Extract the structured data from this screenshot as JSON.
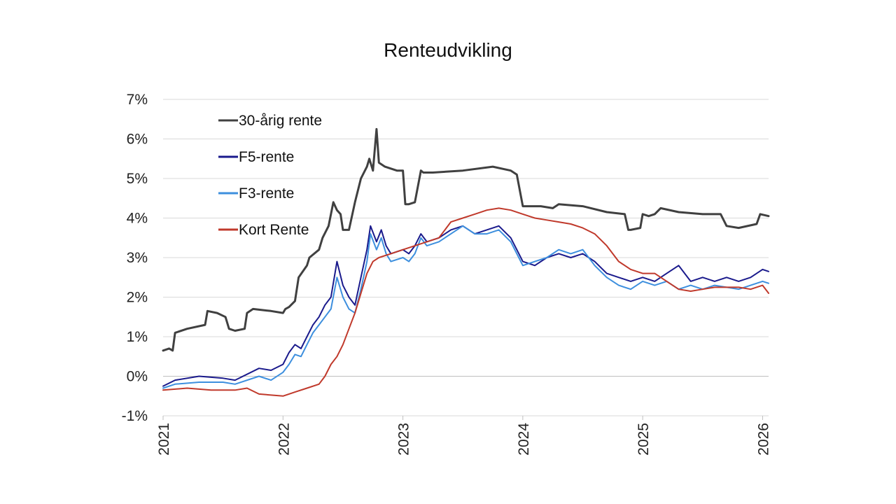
{
  "chart_data": {
    "type": "line",
    "title": "Renteudvikling",
    "xlabel": "",
    "ylabel": "",
    "x_ticks": [
      "2021",
      "2022",
      "2023",
      "2024",
      "2025",
      "2026"
    ],
    "y_ticks": [
      "7%",
      "6%",
      "5%",
      "4%",
      "3%",
      "2%",
      "1%",
      "0%",
      "-1%"
    ],
    "xlim": [
      2021.0,
      2026.05
    ],
    "ylim": [
      -1,
      7
    ],
    "grid": "horizontal",
    "legend_position": "top-left",
    "series": [
      {
        "name": "30-årig rente",
        "color": "#404040",
        "x": [
          2021.0,
          2021.05,
          2021.08,
          2021.1,
          2021.2,
          2021.35,
          2021.37,
          2021.45,
          2021.52,
          2021.55,
          2021.6,
          2021.68,
          2021.7,
          2021.75,
          2021.9,
          2022.0,
          2022.02,
          2022.05,
          2022.1,
          2022.13,
          2022.2,
          2022.22,
          2022.3,
          2022.33,
          2022.38,
          2022.42,
          2022.45,
          2022.48,
          2022.5,
          2022.55,
          2022.6,
          2022.65,
          2022.7,
          2022.72,
          2022.75,
          2022.78,
          2022.8,
          2022.85,
          2022.95,
          2023.0,
          2023.02,
          2023.05,
          2023.1,
          2023.15,
          2023.17,
          2023.25,
          2023.5,
          2023.75,
          2023.9,
          2023.95,
          2024.0,
          2024.15,
          2024.25,
          2024.3,
          2024.5,
          2024.7,
          2024.85,
          2024.88,
          2024.9,
          2024.98,
          2025.0,
          2025.05,
          2025.1,
          2025.15,
          2025.3,
          2025.5,
          2025.65,
          2025.7,
          2025.8,
          2025.95,
          2025.98,
          2026.05
        ],
        "y": [
          0.65,
          0.7,
          0.65,
          1.1,
          1.2,
          1.3,
          1.65,
          1.6,
          1.5,
          1.2,
          1.15,
          1.2,
          1.6,
          1.7,
          1.65,
          1.6,
          1.7,
          1.75,
          1.9,
          2.5,
          2.8,
          3.0,
          3.2,
          3.5,
          3.8,
          4.4,
          4.2,
          4.1,
          3.7,
          3.7,
          4.4,
          5.0,
          5.3,
          5.5,
          5.2,
          6.25,
          5.4,
          5.3,
          5.2,
          5.2,
          4.35,
          4.35,
          4.4,
          5.2,
          5.15,
          5.15,
          5.2,
          5.3,
          5.2,
          5.1,
          4.3,
          4.3,
          4.25,
          4.35,
          4.3,
          4.15,
          4.1,
          3.7,
          3.7,
          3.75,
          4.1,
          4.05,
          4.1,
          4.25,
          4.15,
          4.1,
          4.1,
          3.8,
          3.75,
          3.85,
          4.1,
          4.05
        ]
      },
      {
        "name": "F5-rente",
        "color": "#1a1a8c",
        "x": [
          2021.0,
          2021.1,
          2021.3,
          2021.5,
          2021.6,
          2021.8,
          2021.9,
          2022.0,
          2022.05,
          2022.1,
          2022.15,
          2022.2,
          2022.25,
          2022.3,
          2022.35,
          2022.4,
          2022.45,
          2022.5,
          2022.55,
          2022.6,
          2022.65,
          2022.7,
          2022.73,
          2022.78,
          2022.82,
          2022.86,
          2022.9,
          2023.0,
          2023.05,
          2023.1,
          2023.15,
          2023.2,
          2023.3,
          2023.4,
          2023.5,
          2023.6,
          2023.7,
          2023.8,
          2023.9,
          2024.0,
          2024.1,
          2024.2,
          2024.3,
          2024.4,
          2024.5,
          2024.6,
          2024.7,
          2024.8,
          2024.9,
          2025.0,
          2025.1,
          2025.2,
          2025.3,
          2025.4,
          2025.5,
          2025.6,
          2025.7,
          2025.8,
          2025.9,
          2026.0,
          2026.05
        ],
        "y": [
          -0.25,
          -0.1,
          0.0,
          -0.05,
          -0.1,
          0.2,
          0.15,
          0.3,
          0.6,
          0.8,
          0.7,
          1.0,
          1.3,
          1.5,
          1.8,
          2.0,
          2.9,
          2.3,
          2.0,
          1.8,
          2.5,
          3.2,
          3.8,
          3.4,
          3.7,
          3.3,
          3.1,
          3.2,
          3.1,
          3.3,
          3.6,
          3.4,
          3.5,
          3.7,
          3.8,
          3.6,
          3.7,
          3.8,
          3.5,
          2.9,
          2.8,
          3.0,
          3.1,
          3.0,
          3.1,
          2.9,
          2.6,
          2.5,
          2.4,
          2.5,
          2.4,
          2.6,
          2.8,
          2.4,
          2.5,
          2.4,
          2.5,
          2.4,
          2.5,
          2.7,
          2.65
        ]
      },
      {
        "name": "F3-rente",
        "color": "#3d8fde",
        "x": [
          2021.0,
          2021.1,
          2021.3,
          2021.5,
          2021.6,
          2021.8,
          2021.9,
          2022.0,
          2022.05,
          2022.1,
          2022.15,
          2022.2,
          2022.25,
          2022.3,
          2022.35,
          2022.4,
          2022.45,
          2022.5,
          2022.55,
          2022.6,
          2022.65,
          2022.7,
          2022.73,
          2022.78,
          2022.82,
          2022.86,
          2022.9,
          2023.0,
          2023.05,
          2023.1,
          2023.15,
          2023.2,
          2023.3,
          2023.4,
          2023.5,
          2023.6,
          2023.7,
          2023.8,
          2023.9,
          2024.0,
          2024.1,
          2024.2,
          2024.3,
          2024.4,
          2024.5,
          2024.6,
          2024.7,
          2024.8,
          2024.9,
          2025.0,
          2025.1,
          2025.2,
          2025.3,
          2025.4,
          2025.5,
          2025.6,
          2025.7,
          2025.8,
          2025.9,
          2026.0,
          2026.05
        ],
        "y": [
          -0.3,
          -0.2,
          -0.15,
          -0.15,
          -0.2,
          0.0,
          -0.1,
          0.1,
          0.3,
          0.55,
          0.5,
          0.8,
          1.1,
          1.3,
          1.5,
          1.7,
          2.5,
          2.0,
          1.7,
          1.6,
          2.2,
          2.9,
          3.6,
          3.2,
          3.5,
          3.1,
          2.9,
          3.0,
          2.9,
          3.1,
          3.5,
          3.3,
          3.4,
          3.6,
          3.8,
          3.6,
          3.6,
          3.7,
          3.4,
          2.8,
          2.9,
          3.0,
          3.2,
          3.1,
          3.2,
          2.8,
          2.5,
          2.3,
          2.2,
          2.4,
          2.3,
          2.4,
          2.2,
          2.3,
          2.2,
          2.3,
          2.25,
          2.2,
          2.3,
          2.4,
          2.35
        ]
      },
      {
        "name": "Kort Rente",
        "color": "#c0392b",
        "x": [
          2021.0,
          2021.2,
          2021.4,
          2021.6,
          2021.7,
          2021.8,
          2022.0,
          2022.05,
          2022.1,
          2022.2,
          2022.3,
          2022.35,
          2022.4,
          2022.45,
          2022.5,
          2022.55,
          2022.6,
          2022.65,
          2022.7,
          2022.75,
          2022.8,
          2022.9,
          2023.0,
          2023.1,
          2023.2,
          2023.3,
          2023.4,
          2023.5,
          2023.6,
          2023.7,
          2023.8,
          2023.9,
          2024.0,
          2024.1,
          2024.2,
          2024.3,
          2024.4,
          2024.5,
          2024.6,
          2024.7,
          2024.8,
          2024.9,
          2025.0,
          2025.1,
          2025.2,
          2025.3,
          2025.4,
          2025.5,
          2025.6,
          2025.7,
          2025.8,
          2025.9,
          2026.0,
          2026.05
        ],
        "y": [
          -0.35,
          -0.3,
          -0.35,
          -0.35,
          -0.3,
          -0.45,
          -0.5,
          -0.45,
          -0.4,
          -0.3,
          -0.2,
          0.0,
          0.3,
          0.5,
          0.8,
          1.2,
          1.6,
          2.1,
          2.6,
          2.9,
          3.0,
          3.1,
          3.2,
          3.3,
          3.4,
          3.5,
          3.9,
          4.0,
          4.1,
          4.2,
          4.25,
          4.2,
          4.1,
          4.0,
          3.95,
          3.9,
          3.85,
          3.75,
          3.6,
          3.3,
          2.9,
          2.7,
          2.6,
          2.6,
          2.4,
          2.2,
          2.15,
          2.2,
          2.25,
          2.25,
          2.25,
          2.2,
          2.3,
          2.1
        ]
      }
    ]
  }
}
